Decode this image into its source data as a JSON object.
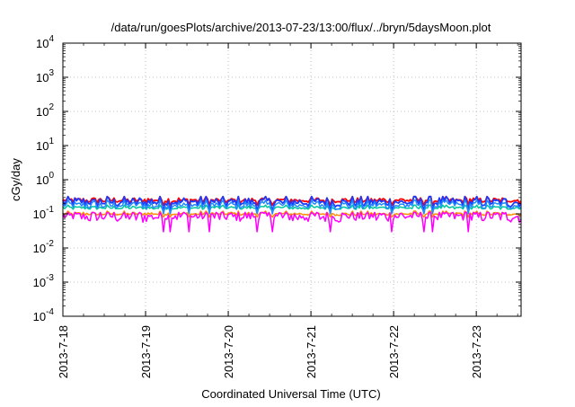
{
  "chart_data": {
    "type": "line",
    "title": "/data/run/goesPlots/archive/2013-07-23/13:00/flux/../bryn/5daysMoon.plot",
    "xlabel": "Coordinated Universal Time (UTC)",
    "ylabel": "cGy/day",
    "y_scale": "log",
    "ylim_exponents": [
      -4,
      4
    ],
    "y_tick_labels": [
      {
        "base": "10",
        "exp": "-4"
      },
      {
        "base": "10",
        "exp": "-3"
      },
      {
        "base": "10",
        "exp": "-2"
      },
      {
        "base": "10",
        "exp": "-1"
      },
      {
        "base": "10",
        "exp": "0"
      },
      {
        "base": "10",
        "exp": "1"
      },
      {
        "base": "10",
        "exp": "2"
      },
      {
        "base": "10",
        "exp": "3"
      },
      {
        "base": "10",
        "exp": "4"
      }
    ],
    "xlim": [
      "2013-07-18T00:00",
      "2013-07-23T13:00"
    ],
    "x_tick_labels": [
      "2013-7-18",
      "2013-7-19",
      "2013-7-20",
      "2013-7-21",
      "2013-7-22",
      "2013-7-23"
    ],
    "grid": true,
    "series_colors": [
      "#ff0000",
      "#00aa00",
      "#2288ff",
      "#ff8c00",
      "#ff00ff",
      "#1a3cff",
      "#00c8a0"
    ],
    "series": [
      {
        "color": "#ff0000",
        "typical": 0.25,
        "range": [
          0.18,
          0.32
        ]
      },
      {
        "color": "#1a3cff",
        "typical": 0.22,
        "range": [
          0.12,
          0.32
        ]
      },
      {
        "color": "#00c8a0",
        "typical": 0.15,
        "range": [
          0.12,
          0.18
        ]
      },
      {
        "color": "#2288ff",
        "typical": 0.18,
        "range": [
          0.1,
          0.25
        ]
      },
      {
        "color": "#ff8c00",
        "typical": 0.1,
        "range": [
          0.08,
          0.12
        ]
      },
      {
        "color": "#ff00ff",
        "typical": 0.085,
        "range": [
          0.03,
          0.11
        ]
      }
    ]
  }
}
